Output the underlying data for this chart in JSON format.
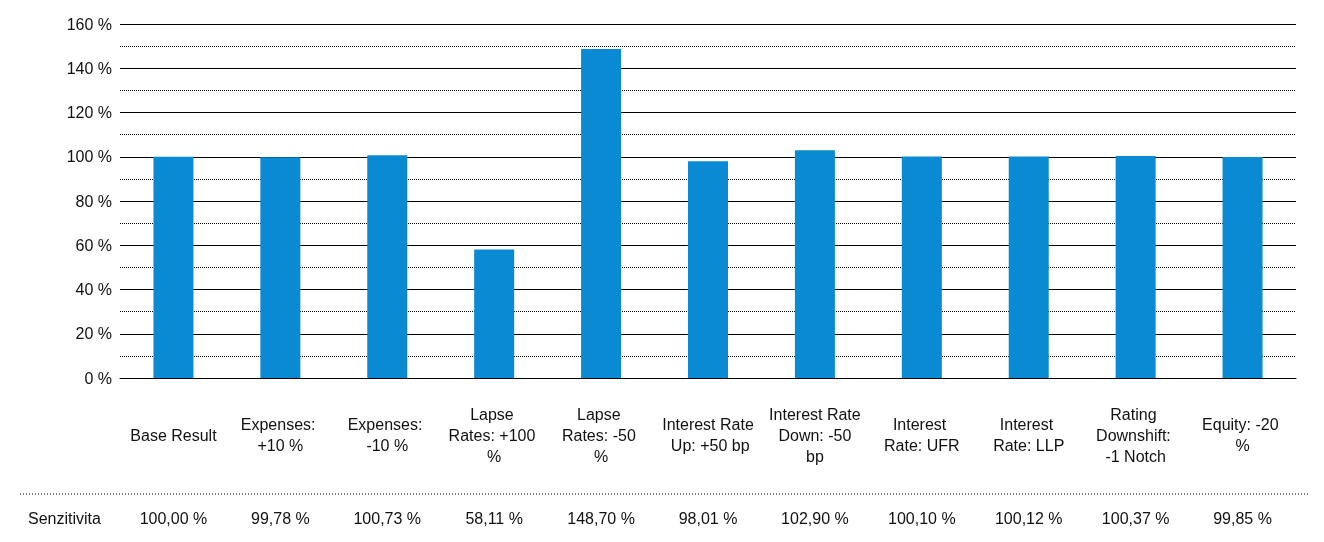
{
  "chart_data": {
    "type": "bar",
    "categories": [
      "Base Result",
      "Expenses: +10 %",
      "Expenses: -10 %",
      "Lapse Rates: +100 %",
      "Lapse Rates: -50 %",
      "Interest Rate Up: +50 bp",
      "Interest Rate Down: -50 bp",
      "Interest Rate: UFR",
      "Interest Rate: LLP",
      "Rating Downshift: -1 Notch",
      "Equity: -20 %"
    ],
    "series": [
      {
        "name": "Senzitivita",
        "color": "#0a8ad2",
        "values": [
          100.0,
          99.78,
          100.73,
          58.11,
          148.7,
          98.01,
          102.9,
          100.1,
          100.12,
          100.37,
          99.85
        ],
        "value_labels": [
          "100,00 %",
          "99,78 %",
          "100,73 %",
          "58,11 %",
          "148,70 %",
          "98,01 %",
          "102,90 %",
          "100,10 %",
          "100,12 %",
          "100,37 %",
          "99,85 %"
        ]
      }
    ],
    "ylim": [
      0,
      160
    ],
    "yticks": [
      {
        "value": 0,
        "label": "0 %"
      },
      {
        "value": 20,
        "label": "20 %"
      },
      {
        "value": 40,
        "label": "40 %"
      },
      {
        "value": 60,
        "label": "60 %"
      },
      {
        "value": 80,
        "label": "80 %"
      },
      {
        "value": 100,
        "label": "100 %"
      },
      {
        "value": 120,
        "label": "120 %"
      },
      {
        "value": 140,
        "label": "140 %"
      },
      {
        "value": 160,
        "label": "160 %"
      }
    ],
    "grid": true,
    "legend": false
  }
}
